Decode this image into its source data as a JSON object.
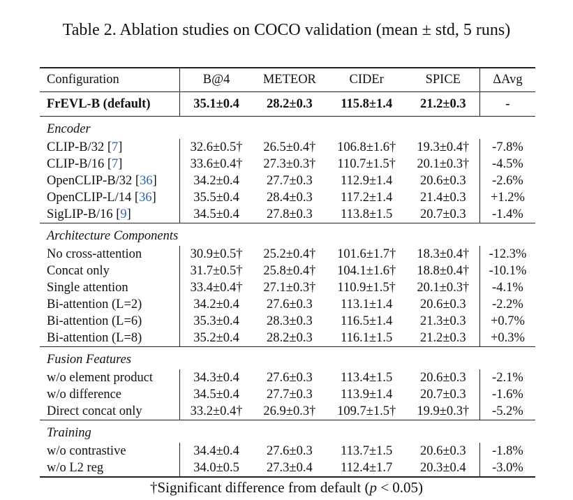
{
  "caption": "Table 2. Ablation studies on COCO validation (mean ± std, 5 runs)",
  "headers": [
    "Configuration",
    "B@4",
    "METEOR",
    "CIDEr",
    "SPICE",
    "ΔAvg"
  ],
  "default_row": [
    "FrEVL-B (default)",
    "35.1±0.4",
    "28.2±0.3",
    "115.8±1.4",
    "21.2±0.3",
    "-"
  ],
  "sections": [
    {
      "title": "Encoder",
      "rows": [
        {
          "name": "CLIP-B/32 [",
          "ref": "7",
          "tail": "]",
          "cells": [
            "32.6±0.5†",
            "26.5±0.4†",
            "106.8±1.6†",
            "19.3±0.4†",
            "-7.8%"
          ]
        },
        {
          "name": "CLIP-B/16 [",
          "ref": "7",
          "tail": "]",
          "cells": [
            "33.6±0.4†",
            "27.3±0.3†",
            "110.7±1.5†",
            "20.1±0.3†",
            "-4.5%"
          ]
        },
        {
          "name": "OpenCLIP-B/32 [",
          "ref": "36",
          "tail": "]",
          "cells": [
            "34.2±0.4",
            "27.7±0.3",
            "112.9±1.4",
            "20.6±0.3",
            "-2.6%"
          ]
        },
        {
          "name": "OpenCLIP-L/14 [",
          "ref": "36",
          "tail": "]",
          "cells": [
            "35.5±0.4",
            "28.4±0.3",
            "117.2±1.4",
            "21.4±0.3",
            "+1.2%"
          ]
        },
        {
          "name": "SigLIP-B/16 [",
          "ref": "9",
          "tail": "]",
          "cells": [
            "34.5±0.4",
            "27.8±0.3",
            "113.8±1.5",
            "20.7±0.3",
            "-1.4%"
          ]
        }
      ]
    },
    {
      "title": "Architecture Components",
      "rows": [
        {
          "name": "No cross-attention",
          "cells": [
            "30.9±0.5†",
            "25.2±0.4†",
            "101.6±1.7†",
            "18.3±0.4†",
            "-12.3%"
          ]
        },
        {
          "name": "Concat only",
          "cells": [
            "31.7±0.5†",
            "25.8±0.4†",
            "104.1±1.6†",
            "18.8±0.4†",
            "-10.1%"
          ]
        },
        {
          "name": "Single attention",
          "cells": [
            "33.4±0.4†",
            "27.1±0.3†",
            "110.9±1.5†",
            "20.1±0.3†",
            "-4.1%"
          ]
        },
        {
          "name": "Bi-attention (L=2)",
          "cells": [
            "34.2±0.4",
            "27.6±0.3",
            "113.1±1.4",
            "20.6±0.3",
            "-2.2%"
          ]
        },
        {
          "name": "Bi-attention (L=6)",
          "cells": [
            "35.3±0.4",
            "28.3±0.3",
            "116.5±1.4",
            "21.3±0.3",
            "+0.7%"
          ]
        },
        {
          "name": "Bi-attention (L=8)",
          "cells": [
            "35.2±0.4",
            "28.2±0.3",
            "116.1±1.5",
            "21.2±0.3",
            "+0.3%"
          ]
        }
      ]
    },
    {
      "title": "Fusion Features",
      "rows": [
        {
          "name": "w/o element product",
          "cells": [
            "34.3±0.4",
            "27.6±0.3",
            "113.4±1.5",
            "20.6±0.3",
            "-2.1%"
          ]
        },
        {
          "name": "w/o difference",
          "cells": [
            "34.5±0.4",
            "27.7±0.3",
            "113.9±1.4",
            "20.7±0.3",
            "-1.6%"
          ]
        },
        {
          "name": "Direct concat only",
          "cells": [
            "33.2±0.4†",
            "26.9±0.3†",
            "109.7±1.5†",
            "19.9±0.3†",
            "-5.2%"
          ]
        }
      ]
    },
    {
      "title": "Training",
      "rows": [
        {
          "name": "w/o contrastive",
          "cells": [
            "34.4±0.4",
            "27.6±0.3",
            "113.7±1.5",
            "20.6±0.3",
            "-1.8%"
          ]
        },
        {
          "name": "w/o L2 reg",
          "cells": [
            "34.0±0.5",
            "27.3±0.4",
            "112.4±1.7",
            "20.3±0.4",
            "-3.0%"
          ]
        }
      ]
    }
  ],
  "footnote": {
    "text": "†Significant difference from default (",
    "var": "p",
    "rel": " < 0.05)"
  }
}
